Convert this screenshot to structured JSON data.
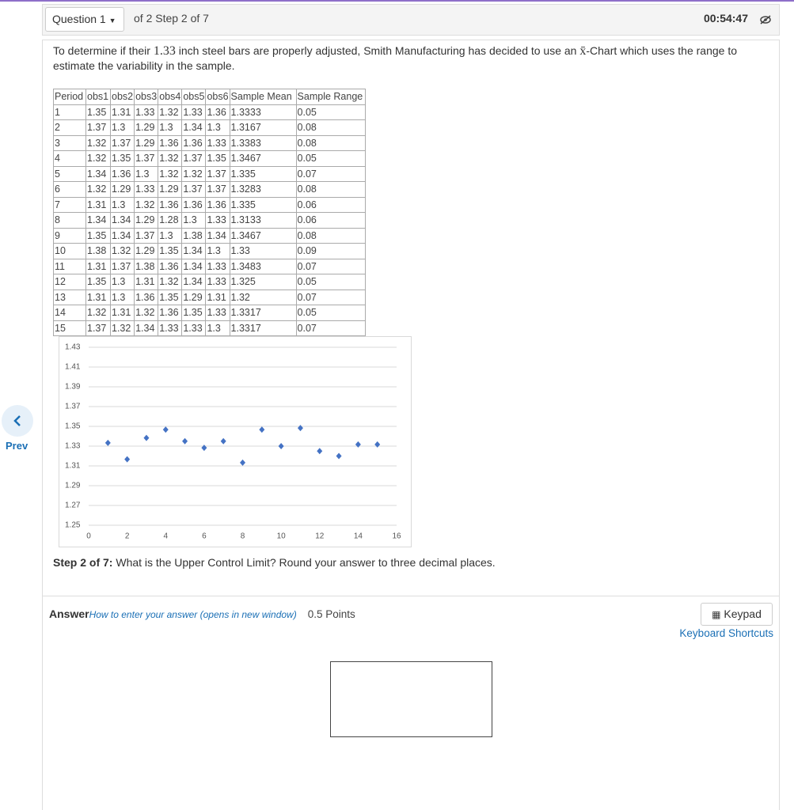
{
  "header": {
    "question_menu": "Question 1",
    "question_of": "of 2 Step 2 of 7",
    "timer": "00:54:47"
  },
  "nav": {
    "prev": "Prev"
  },
  "question": {
    "text_before": "To determine if their ",
    "highlight": "1.33",
    "text_middle": " inch steel bars are properly adjusted, Smith Manufacturing has decided to use an ",
    "symbol": "x̄",
    "text_after": "-Chart which uses the range to estimate the variability in the sample."
  },
  "table": {
    "columns": [
      "Period",
      "obs1",
      "obs2",
      "obs3",
      "obs4",
      "obs5",
      "obs6",
      "Sample Mean",
      "Sample Range"
    ],
    "rows": [
      [
        "1",
        "1.35",
        "1.31",
        "1.33",
        "1.32",
        "1.33",
        "1.36",
        "1.3333",
        "0.05"
      ],
      [
        "2",
        "1.37",
        "1.3",
        "1.29",
        "1.3",
        "1.34",
        "1.3",
        "1.3167",
        "0.08"
      ],
      [
        "3",
        "1.32",
        "1.37",
        "1.29",
        "1.36",
        "1.36",
        "1.33",
        "1.3383",
        "0.08"
      ],
      [
        "4",
        "1.32",
        "1.35",
        "1.37",
        "1.32",
        "1.37",
        "1.35",
        "1.3467",
        "0.05"
      ],
      [
        "5",
        "1.34",
        "1.36",
        "1.3",
        "1.32",
        "1.32",
        "1.37",
        "1.335",
        "0.07"
      ],
      [
        "6",
        "1.32",
        "1.29",
        "1.33",
        "1.29",
        "1.37",
        "1.37",
        "1.3283",
        "0.08"
      ],
      [
        "7",
        "1.31",
        "1.3",
        "1.32",
        "1.36",
        "1.36",
        "1.36",
        "1.335",
        "0.06"
      ],
      [
        "8",
        "1.34",
        "1.34",
        "1.29",
        "1.28",
        "1.3",
        "1.33",
        "1.3133",
        "0.06"
      ],
      [
        "9",
        "1.35",
        "1.34",
        "1.37",
        "1.3",
        "1.38",
        "1.34",
        "1.3467",
        "0.08"
      ],
      [
        "10",
        "1.38",
        "1.32",
        "1.29",
        "1.35",
        "1.34",
        "1.3",
        "1.33",
        "0.09"
      ],
      [
        "11",
        "1.31",
        "1.37",
        "1.38",
        "1.36",
        "1.34",
        "1.33",
        "1.3483",
        "0.07"
      ],
      [
        "12",
        "1.35",
        "1.3",
        "1.31",
        "1.32",
        "1.34",
        "1.33",
        "1.325",
        "0.05"
      ],
      [
        "13",
        "1.31",
        "1.3",
        "1.36",
        "1.35",
        "1.29",
        "1.31",
        "1.32",
        "0.07"
      ],
      [
        "14",
        "1.32",
        "1.31",
        "1.32",
        "1.36",
        "1.35",
        "1.33",
        "1.3317",
        "0.05"
      ],
      [
        "15",
        "1.37",
        "1.32",
        "1.34",
        "1.33",
        "1.33",
        "1.3",
        "1.3317",
        "0.07"
      ]
    ]
  },
  "chart_data": {
    "type": "scatter",
    "x": [
      1,
      2,
      3,
      4,
      5,
      6,
      7,
      8,
      9,
      10,
      11,
      12,
      13,
      14,
      15
    ],
    "values": [
      1.3333,
      1.3167,
      1.3383,
      1.3467,
      1.335,
      1.3283,
      1.335,
      1.3133,
      1.3467,
      1.33,
      1.3483,
      1.325,
      1.32,
      1.3317,
      1.3317
    ],
    "color": "#4472c4",
    "xlim": [
      0,
      16
    ],
    "ylim": [
      1.25,
      1.43
    ],
    "xticks": [
      0,
      2,
      4,
      6,
      8,
      10,
      12,
      14,
      16
    ],
    "yticks": [
      1.25,
      1.27,
      1.29,
      1.31,
      1.33,
      1.35,
      1.37,
      1.39,
      1.41,
      1.43
    ],
    "grid": true
  },
  "step": {
    "label": "Step 2 of 7:",
    "prompt": " What is the Upper Control Limit? Round your answer to three decimal places."
  },
  "answer": {
    "label": "Answer",
    "help_link": "How to enter your answer (opens in new window)",
    "points": "0.5 Points",
    "keypad": "Keypad",
    "shortcuts": "Keyboard Shortcuts"
  }
}
